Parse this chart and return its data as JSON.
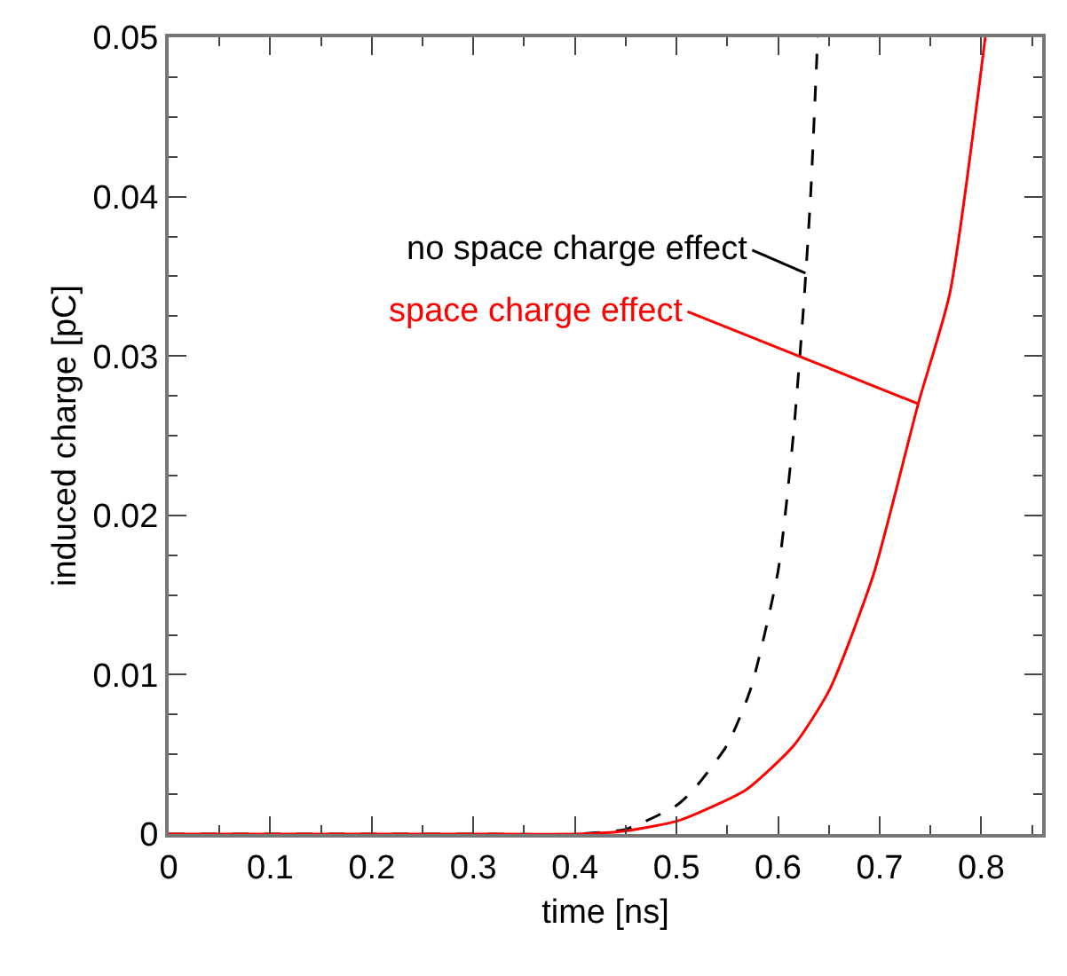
{
  "chart_data": {
    "type": "line",
    "xlabel": "time [ns]",
    "ylabel": "induced charge [pC]",
    "xlim": [
      0,
      0.86
    ],
    "xticks": [
      0,
      0.1,
      0.2,
      0.3,
      0.4,
      0.5,
      0.6,
      0.7,
      0.8
    ],
    "ylim": [
      0,
      0.05
    ],
    "yticks": [
      0,
      0.01,
      0.02,
      0.03,
      0.04,
      0.05
    ],
    "grid": false,
    "marker": "none",
    "series": [
      {
        "color": "#000000",
        "line_style": "dashed",
        "x": [
          0,
          0.1,
          0.2,
          0.3,
          0.4,
          0.45,
          0.5,
          0.517,
          0.55,
          0.573,
          0.6,
          0.615,
          0.625,
          0.632,
          0.639
        ],
        "values": [
          0,
          0,
          0,
          0,
          0,
          0.0003,
          0.0018,
          0.0028,
          0.0056,
          0.0091,
          0.0165,
          0.025,
          0.033,
          0.04,
          0.05
        ]
      },
      {
        "color": "#ff0000",
        "line_style": "solid",
        "x": [
          0,
          0.1,
          0.2,
          0.3,
          0.4,
          0.45,
          0.5,
          0.524,
          0.569,
          0.616,
          0.651,
          0.694,
          0.738,
          0.769,
          0.804
        ],
        "values": [
          0,
          0,
          0,
          0,
          0,
          0.0002,
          0.0008,
          0.0014,
          0.0028,
          0.0056,
          0.0091,
          0.0163,
          0.027,
          0.0339,
          0.05
        ]
      }
    ],
    "annotations": [
      {
        "text": "no space charge effect",
        "x": 0.627,
        "y": 0.0352
      },
      {
        "text": "space charge effect",
        "x": 0.738,
        "y": 0.027
      }
    ]
  }
}
